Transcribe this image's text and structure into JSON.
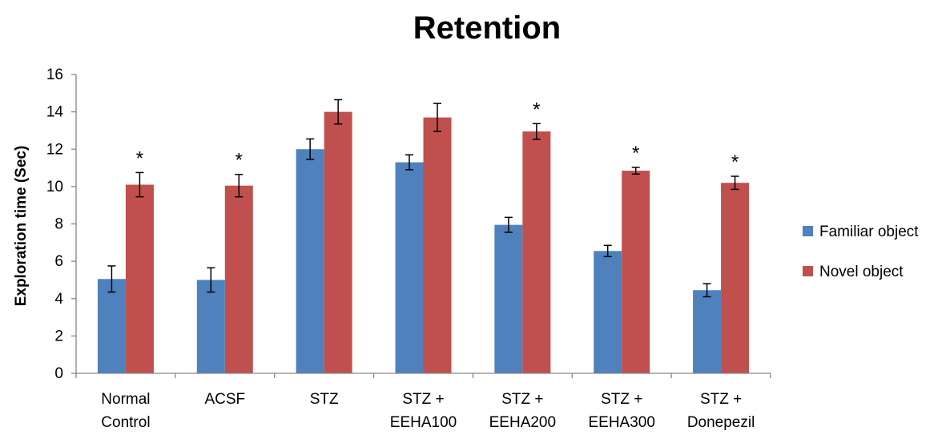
{
  "chart_data": {
    "type": "bar",
    "title": "Retention",
    "xlabel": "",
    "ylabel": "Exploration time (Sec)",
    "ylim": [
      0,
      16
    ],
    "yticks": [
      0,
      2,
      4,
      6,
      8,
      10,
      12,
      14,
      16
    ],
    "grid": false,
    "legend_position": "right",
    "categories": [
      [
        "Normal",
        "Control"
      ],
      [
        "ACSF"
      ],
      [
        "STZ"
      ],
      [
        "STZ +",
        "EEHA100"
      ],
      [
        "STZ +",
        "EEHA200"
      ],
      [
        "STZ +",
        "EEHA300"
      ],
      [
        "STZ +",
        "Donepezil"
      ]
    ],
    "series": [
      {
        "name": "Familiar object",
        "color": "#4f81bd",
        "values": [
          5.05,
          5.0,
          12.0,
          11.3,
          7.95,
          6.55,
          4.45
        ],
        "errors": [
          0.7,
          0.65,
          0.55,
          0.4,
          0.4,
          0.3,
          0.35
        ]
      },
      {
        "name": "Novel object",
        "color": "#c0504d",
        "values": [
          10.1,
          10.05,
          14.0,
          13.7,
          12.95,
          10.85,
          10.2
        ],
        "errors": [
          0.65,
          0.6,
          0.65,
          0.75,
          0.42,
          0.18,
          0.35
        ]
      }
    ],
    "significance_marks": [
      {
        "category": 0,
        "series": 1,
        "label": "*"
      },
      {
        "category": 1,
        "series": 1,
        "label": "*"
      },
      {
        "category": 4,
        "series": 1,
        "label": "*"
      },
      {
        "category": 5,
        "series": 1,
        "label": "*"
      },
      {
        "category": 6,
        "series": 1,
        "label": "*"
      }
    ]
  }
}
